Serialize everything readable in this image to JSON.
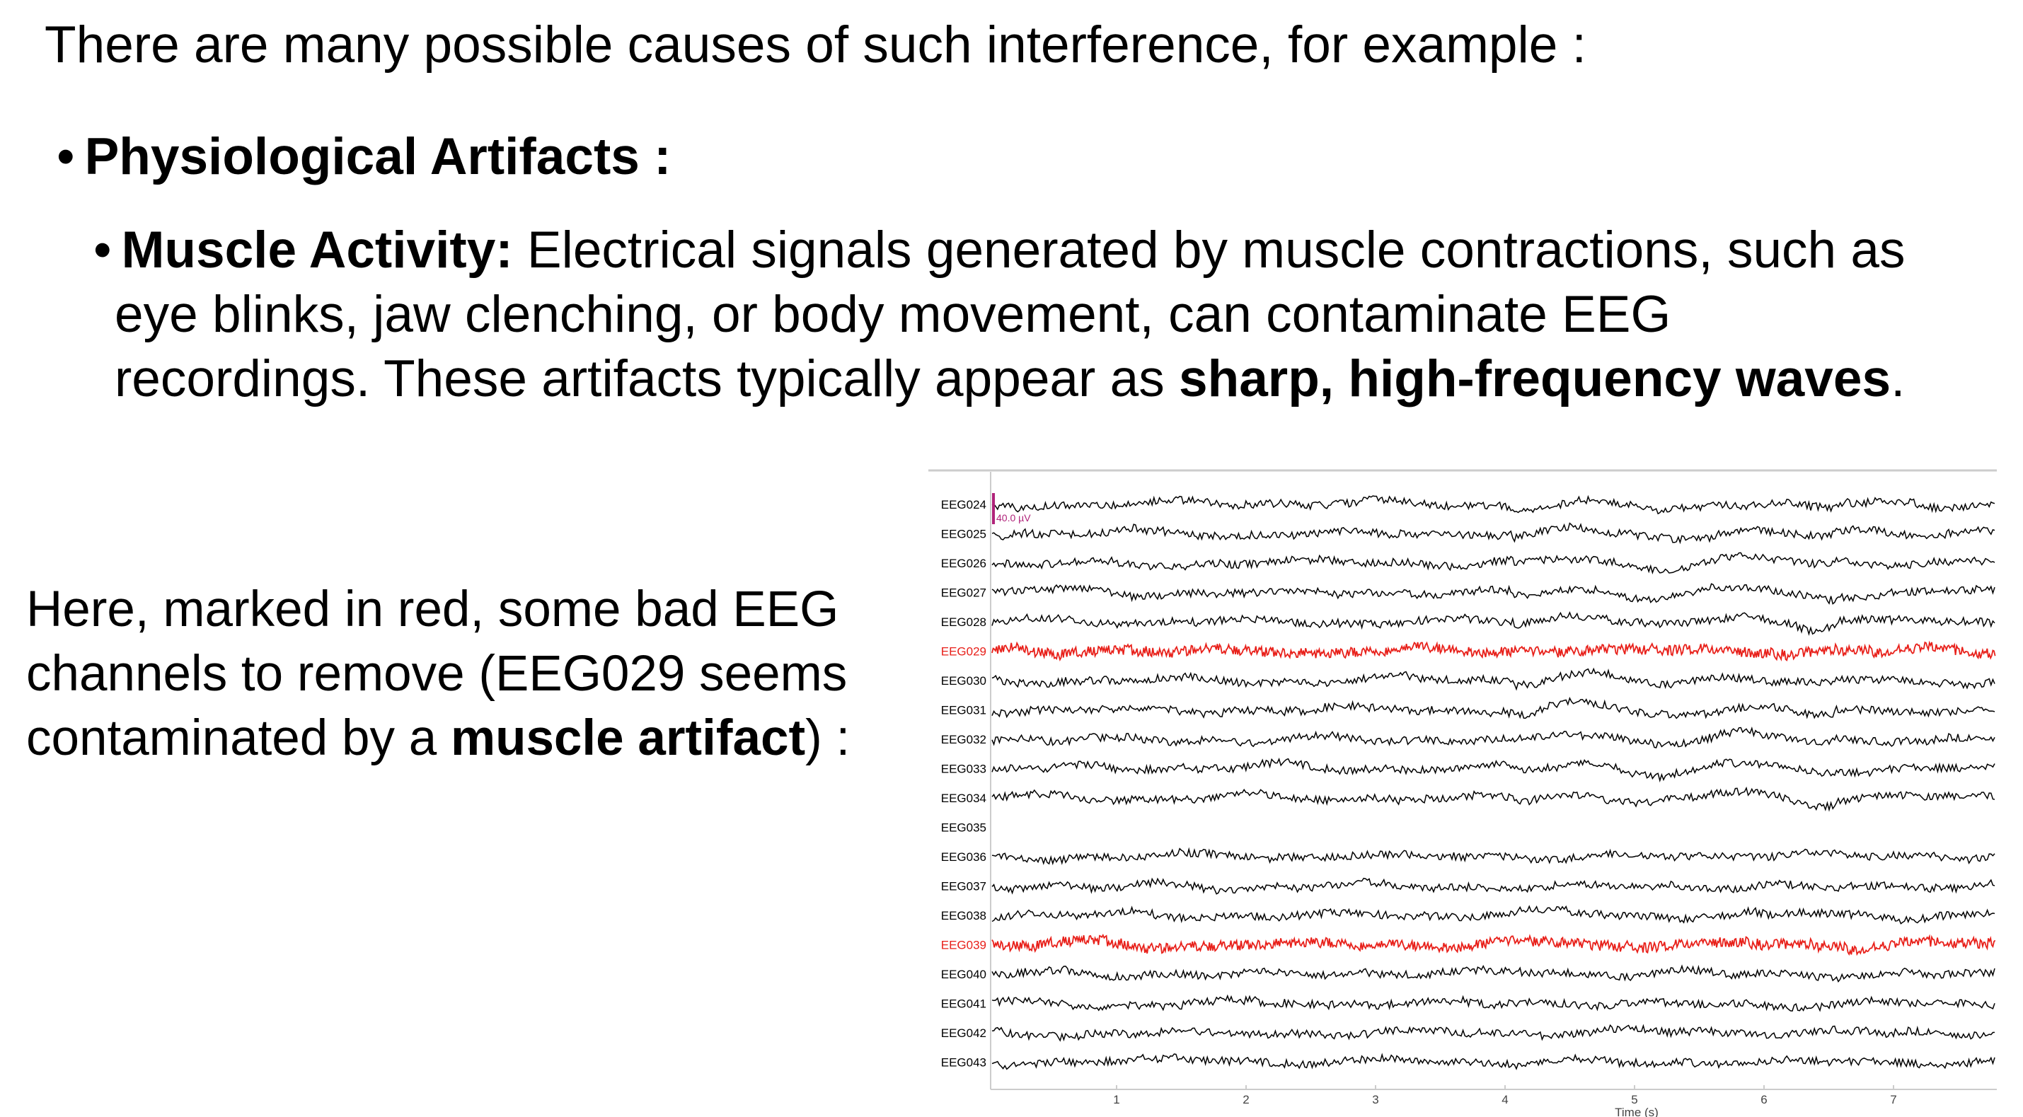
{
  "intro": "There are many possible causes of such interference, for example :",
  "bullet_symbol": "•",
  "physiological": {
    "heading": "Physiological Artifacts :"
  },
  "muscle": {
    "term": "Muscle Activity:",
    "line1_rest": " Electrical signals generated by muscle contractions, such as",
    "line2": "eye blinks, jaw clenching, or body movement, can contaminate EEG",
    "line3_pre": "recordings. These artifacts typically appear as ",
    "line3_bold": "sharp, high-frequency waves",
    "line3_post": "."
  },
  "side_note": {
    "line1": "Here, marked in red, some bad EEG",
    "line2": "channels to remove (EEG029 seems",
    "line3_pre": "contaminated by a ",
    "line3_bold": "muscle artifact",
    "line3_post": ") :"
  },
  "eeg_plot": {
    "channels": [
      "EEG024",
      "EEG025",
      "EEG026",
      "EEG027",
      "EEG028",
      "EEG029",
      "EEG030",
      "EEG031",
      "EEG032",
      "EEG033",
      "EEG034",
      "EEG035",
      "EEG036",
      "EEG037",
      "EEG038",
      "EEG039",
      "EEG040",
      "EEG041",
      "EEG042",
      "EEG043"
    ],
    "bad_channels": [
      "EEG029",
      "EEG039"
    ],
    "flat_channels": [
      "EEG035"
    ],
    "scale_label": "40.0 µV",
    "x_ticks": [
      "1",
      "2",
      "3",
      "4",
      "5",
      "6",
      "7"
    ],
    "x_label": "Time (s)",
    "colors": {
      "good": "#000000",
      "bad": "#e8201a",
      "scale": "#b0237a",
      "axis": "#cccccc"
    }
  }
}
